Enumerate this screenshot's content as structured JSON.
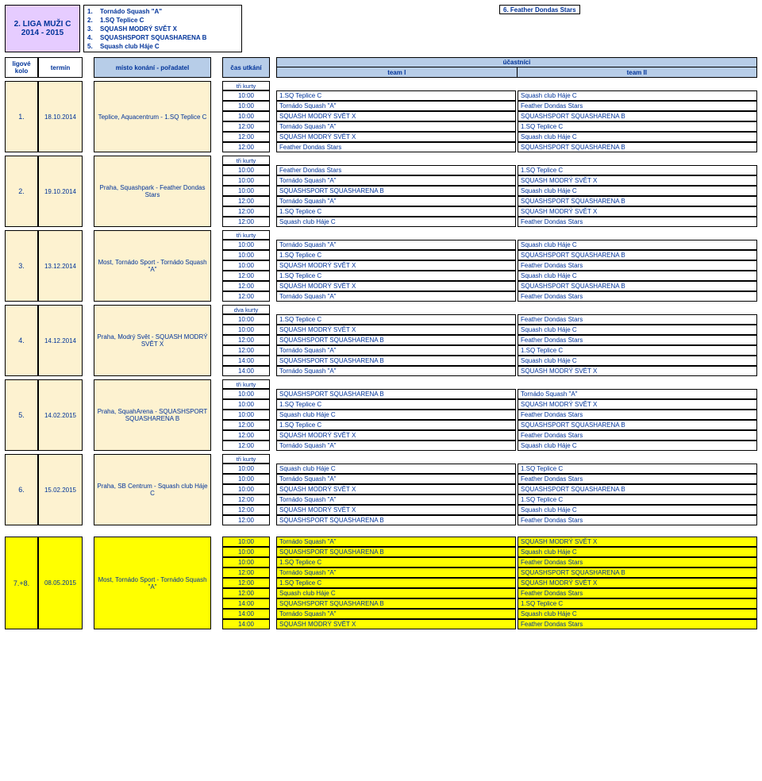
{
  "league": {
    "line1": "2. LIGA MUŽI C",
    "line2": "2014 - 2015"
  },
  "teams_list": [
    "Tornádo Squash \"A\"",
    "1.SQ Teplice C",
    "SQUASH MODRÝ SVĚT X",
    "SQUASHSPORT SQUASHARENA B",
    "Squash club Háje C"
  ],
  "team6": "6.   Feather Dondas Stars",
  "hdr": {
    "kolo": "ligové kolo",
    "termin": "termín",
    "misto": "místo konání - pořadatel",
    "cas": "čas utkání",
    "uc": "účastníci",
    "t1": "team I",
    "t2": "team II"
  },
  "kurty3": "tři kurty",
  "kurty2": "dva kurty",
  "T": {
    "A": "Tornádo Squash \"A\"",
    "B": "1.SQ Teplice C",
    "C": "SQUASH MODRÝ SVĚT X",
    "D": "SQUASHSPORT SQUASHARENA B",
    "E": "Squash club Háje C",
    "F": "Feather Dondas Stars"
  },
  "rounds": [
    {
      "num": "1.",
      "date": "18.10.2014",
      "place": "Teplice, Aquacentrum - 1.SQ Teplice C",
      "kurty": "tři kurty",
      "yellow": false,
      "matches": [
        [
          "10:00",
          "B",
          "E"
        ],
        [
          "10:00",
          "A",
          "F"
        ],
        [
          "10:00",
          "C",
          "D"
        ],
        [
          "12:00",
          "A",
          "B"
        ],
        [
          "12:00",
          "C",
          "E"
        ],
        [
          "12:00",
          "F",
          "D"
        ]
      ]
    },
    {
      "num": "2.",
      "date": "19.10.2014",
      "place": "Praha, Squashpark - Feather Dondas Stars",
      "kurty": "tři kurty",
      "yellow": false,
      "matches": [
        [
          "10:00",
          "F",
          "B"
        ],
        [
          "10:00",
          "A",
          "C"
        ],
        [
          "10:00",
          "D",
          "E"
        ],
        [
          "12:00",
          "A",
          "D"
        ],
        [
          "12:00",
          "B",
          "C"
        ],
        [
          "12:00",
          "E",
          "F"
        ]
      ]
    },
    {
      "num": "3.",
      "date": "13.12.2014",
      "place": "Most, Tornádo Sport - Tornádo Squash \"A\"",
      "kurty": "tři kurty",
      "yellow": false,
      "matches": [
        [
          "10:00",
          "A",
          "E"
        ],
        [
          "10:00",
          "B",
          "D"
        ],
        [
          "10:00",
          "C",
          "F"
        ],
        [
          "12:00",
          "B",
          "E"
        ],
        [
          "12:00",
          "C",
          "D"
        ],
        [
          "12:00",
          "A",
          "F"
        ]
      ]
    },
    {
      "num": "4.",
      "date": "14.12.2014",
      "place": "Praha, Modrý Svět - SQUASH MODRÝ SVĚT X",
      "kurty": "dva kurty",
      "yellow": false,
      "matches": [
        [
          "10:00",
          "B",
          "F"
        ],
        [
          "10:00",
          "C",
          "E"
        ],
        [
          "12:00",
          "D",
          "F"
        ],
        [
          "12:00",
          "A",
          "B"
        ],
        [
          "14:00",
          "D",
          "E"
        ],
        [
          "14:00",
          "A",
          "C"
        ]
      ]
    },
    {
      "num": "5.",
      "date": "14.02.2015",
      "place": "Praha, SquahArena - SQUASHSPORT SQUASHARENA B",
      "kurty": "tři kurty",
      "yellow": false,
      "matches": [
        [
          "10:00",
          "D",
          "A"
        ],
        [
          "10:00",
          "B",
          "C"
        ],
        [
          "10:00",
          "E",
          "F"
        ],
        [
          "12:00",
          "B",
          "D"
        ],
        [
          "12:00",
          "C",
          "F"
        ],
        [
          "12:00",
          "A",
          "E"
        ]
      ]
    },
    {
      "num": "6.",
      "date": "15.02.2015",
      "place": "Praha, SB Centrum - Squash club Háje C",
      "kurty": "tři kurty",
      "yellow": false,
      "matches": [
        [
          "10:00",
          "E",
          "B"
        ],
        [
          "10:00",
          "A",
          "F"
        ],
        [
          "10:00",
          "C",
          "D"
        ],
        [
          "12:00",
          "A",
          "B"
        ],
        [
          "12:00",
          "C",
          "E"
        ],
        [
          "12:00",
          "D",
          "F"
        ]
      ]
    },
    {
      "num": "7.+8.",
      "date": "08.05.2015",
      "place": "Most, Tornádo Sport - Tornádo Squash \"A\"",
      "kurty": "",
      "yellow": true,
      "matches": [
        [
          "10:00",
          "A",
          "C"
        ],
        [
          "10:00",
          "D",
          "E"
        ],
        [
          "10:00",
          "B",
          "F"
        ],
        [
          "12:00",
          "A",
          "D"
        ],
        [
          "12:00",
          "B",
          "C"
        ],
        [
          "12:00",
          "E",
          "F"
        ],
        [
          "14:00",
          "D",
          "B"
        ],
        [
          "14:00",
          "A",
          "E"
        ],
        [
          "14:00",
          "C",
          "F"
        ]
      ]
    }
  ]
}
